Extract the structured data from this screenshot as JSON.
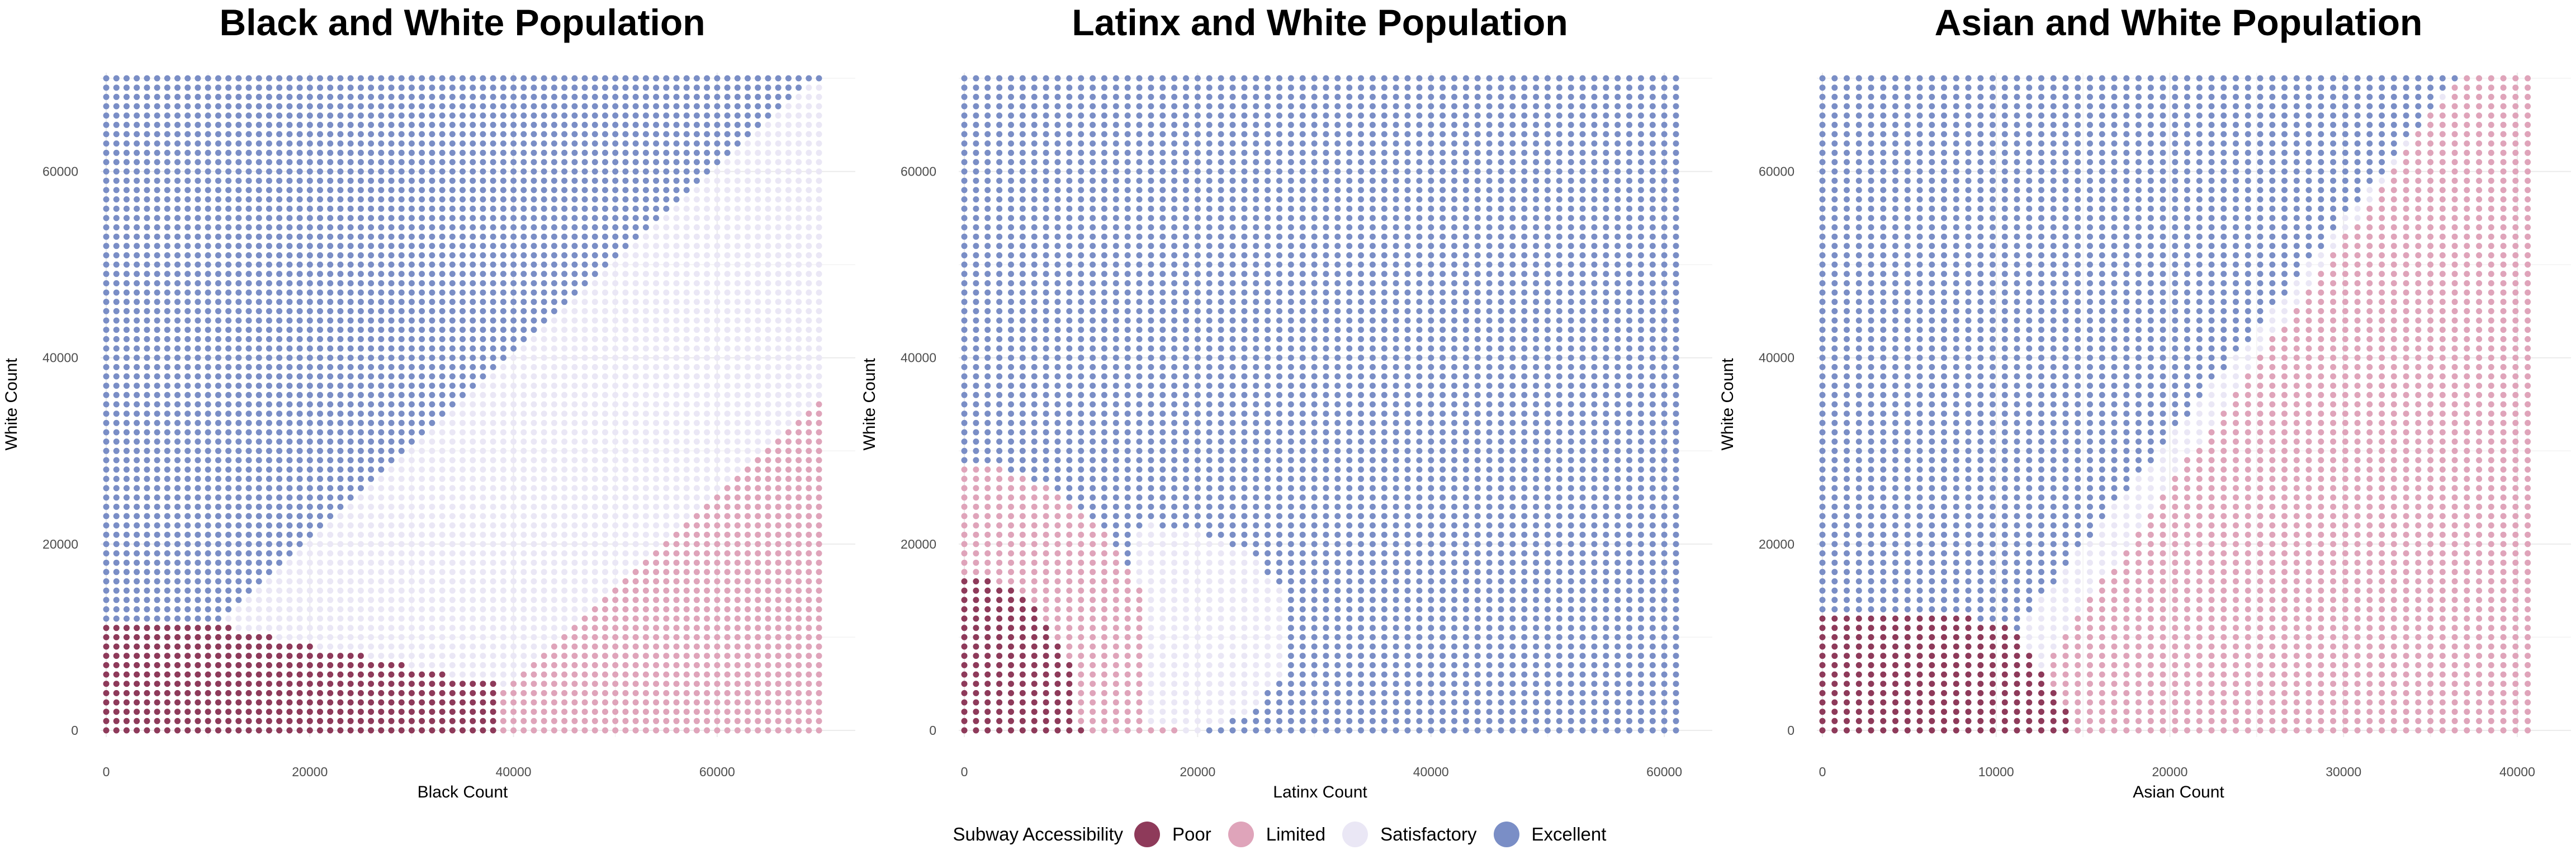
{
  "legend": {
    "title": "Subway Accessibility",
    "items": [
      {
        "label": "Poor",
        "color": "#8e3a5a"
      },
      {
        "label": "Limited",
        "color": "#dfa4ba"
      },
      {
        "label": "Satisfactory",
        "color": "#eae7f5"
      },
      {
        "label": "Excellent",
        "color": "#7a8ec6"
      }
    ]
  },
  "chart_data": [
    {
      "type": "scatter",
      "title": "Black and White Population",
      "xlabel": "Black Count",
      "ylabel": "White Count",
      "xlim": [
        0,
        70000
      ],
      "ylim": [
        0,
        70000
      ],
      "xticks": [
        0,
        20000,
        40000,
        60000
      ],
      "yticks": [
        0,
        20000,
        40000,
        60000
      ],
      "grid": true,
      "series": [
        {
          "name": "Poor",
          "region": "x <= 38000 and y <= 11500 (upper edge descends from 11500 at x=0 to 5000 near x=38000)"
        },
        {
          "name": "Limited",
          "region": "x >= 38000, y below boundary rising from 4000 at x=40000 to 35000 at x=70000"
        },
        {
          "name": "Satisfactory",
          "region": "band between Excellent boundary (y from 11000 at x=10000 to 69000 at x=69000) and Limited region"
        },
        {
          "name": "Excellent",
          "region": "upper-left triangle above boundary"
        }
      ],
      "grid_points": {
        "x_step": 1000,
        "y_step": 1000,
        "x_range": [
          0,
          70000
        ],
        "y_range": [
          0,
          70000
        ]
      }
    },
    {
      "type": "scatter",
      "title": "Latinx and White Population",
      "xlabel": "Latinx Count",
      "ylabel": "White Count",
      "xlim": [
        0,
        61000
      ],
      "ylim": [
        0,
        70000
      ],
      "xticks": [
        0,
        20000,
        40000,
        60000
      ],
      "yticks": [
        0,
        20000,
        40000,
        60000
      ],
      "grid": true,
      "series": [
        {
          "name": "Poor",
          "region": "x <= 9800, y <= 16000"
        },
        {
          "name": "Limited",
          "region": "quarter disc x <= 18000, y <= 28000 outside Poor"
        },
        {
          "name": "Satisfactory",
          "region": "lobe x 15000-28000, y 0-22000"
        },
        {
          "name": "Excellent",
          "region": "remainder"
        }
      ],
      "grid_points": {
        "x_step": 1000,
        "y_step": 1000,
        "x_range": [
          0,
          61000
        ],
        "y_range": [
          0,
          70000
        ]
      }
    },
    {
      "type": "scatter",
      "title": "Asian and White Population",
      "xlabel": "Asian Count",
      "ylabel": "White Count",
      "xlim": [
        0,
        41000
      ],
      "ylim": [
        0,
        70000
      ],
      "xticks": [
        0,
        10000,
        20000,
        30000,
        40000
      ],
      "yticks": [
        0,
        20000,
        40000,
        60000
      ],
      "grid": true,
      "series": [
        {
          "name": "Poor",
          "region": "x <= 14500, y <= 12000 (corner rounded)"
        },
        {
          "name": "Limited",
          "region": "lower-right of diagonal from (10000, 0) to (36500, 70000)"
        },
        {
          "name": "Satisfactory",
          "region": "wedge x 7000-19000, y 9000-38000"
        },
        {
          "name": "Excellent",
          "region": "upper-left of diagonal"
        }
      ],
      "grid_points": {
        "x_step": 700,
        "y_step": 1000,
        "x_range": [
          0,
          41000
        ],
        "y_range": [
          0,
          70000
        ]
      }
    }
  ]
}
